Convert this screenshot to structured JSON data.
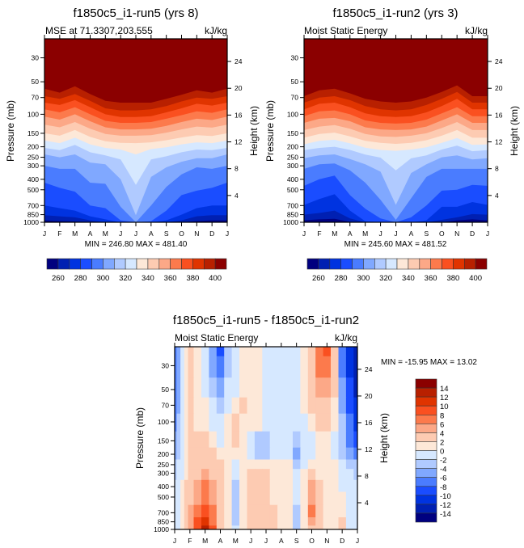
{
  "chart_data": [
    {
      "type": "heatmap",
      "id": "run5",
      "title": "f1850c5_i1-run5 (yrs 8)",
      "left_string": "MSE at 71.3307,203.555",
      "right_string": "kJ/kg",
      "ylabel": "Pressure (mb)",
      "ylabel_right": "Height (km)",
      "x_ticks": [
        "J",
        "F",
        "M",
        "A",
        "M",
        "J",
        "J",
        "A",
        "S",
        "O",
        "N",
        "D",
        "J"
      ],
      "y_ticks": [
        30,
        50,
        70,
        100,
        150,
        200,
        250,
        300,
        400,
        500,
        700,
        850,
        1000
      ],
      "y_ticks_right": [
        24,
        20,
        16,
        12,
        8,
        4
      ],
      "ylim": [
        1000,
        20
      ],
      "minmax_text": "MIN = 246.80 MAX = 481.40",
      "levels": [
        260,
        270,
        280,
        290,
        300,
        310,
        320,
        330,
        340,
        350,
        360,
        370,
        380,
        390,
        400
      ],
      "colorbar_labels": [
        "260",
        "280",
        "300",
        "320",
        "340",
        "360",
        "380",
        "400"
      ],
      "contour_pressure_by_month": {
        "note": "pressure (mb) of each contour boundary by month J..J (13 pts), from top level (400) downward",
        "400": [
          58,
          63,
          55,
          65,
          75,
          78,
          78,
          78,
          72,
          66,
          60,
          63,
          58
        ],
        "390": [
          68,
          72,
          65,
          75,
          88,
          92,
          92,
          90,
          84,
          76,
          70,
          72,
          68
        ],
        "380": [
          78,
          82,
          74,
          86,
          100,
          106,
          106,
          104,
          96,
          88,
          80,
          83,
          78
        ],
        "370": [
          90,
          96,
          86,
          100,
          115,
          120,
          120,
          118,
          110,
          102,
          94,
          97,
          90
        ],
        "360": [
          105,
          112,
          100,
          116,
          132,
          138,
          138,
          136,
          128,
          118,
          110,
          113,
          105
        ],
        "350": [
          125,
          132,
          118,
          136,
          152,
          158,
          158,
          156,
          148,
          138,
          130,
          133,
          125
        ],
        "340": [
          150,
          158,
          140,
          162,
          178,
          184,
          185,
          182,
          174,
          164,
          156,
          159,
          150
        ],
        "330": [
          175,
          185,
          165,
          190,
          205,
          212,
          235,
          210,
          202,
          190,
          182,
          185,
          175
        ],
        "320": [
          205,
          215,
          192,
          225,
          240,
          262,
          450,
          262,
          245,
          225,
          212,
          215,
          205
        ],
        "310": [
          235,
          250,
          235,
          280,
          290,
          400,
          860,
          380,
          310,
          275,
          255,
          255,
          235
        ],
        "300": [
          300,
          320,
          320,
          430,
          440,
          720,
          1000,
          700,
          470,
          360,
          310,
          320,
          300
        ],
        "290": [
          430,
          480,
          520,
          700,
          740,
          960,
          1000,
          980,
          780,
          560,
          510,
          480,
          430
        ],
        "280": [
          700,
          740,
          780,
          880,
          940,
          1000,
          1000,
          1000,
          960,
          850,
          740,
          700,
          700
        ],
        "270": [
          860,
          880,
          900,
          960,
          1000,
          1000,
          1000,
          1000,
          1000,
          960,
          880,
          860,
          860
        ],
        "260": [
          960,
          975,
          985,
          1000,
          1000,
          1000,
          1000,
          1000,
          1000,
          1000,
          975,
          960,
          960
        ]
      }
    },
    {
      "type": "heatmap",
      "id": "run2",
      "title": "f1850c5_i1-run2 (yrs 3)",
      "left_string": "Moist Static Energy",
      "right_string": "kJ/kg",
      "ylabel": "Pressure (mb)",
      "ylabel_right": "Height (km)",
      "x_ticks": [
        "J",
        "F",
        "M",
        "A",
        "M",
        "J",
        "J",
        "A",
        "S",
        "O",
        "N",
        "D",
        "J"
      ],
      "y_ticks": [
        30,
        50,
        70,
        100,
        150,
        200,
        250,
        300,
        400,
        500,
        700,
        850,
        1000
      ],
      "y_ticks_right": [
        24,
        20,
        16,
        12,
        8,
        4
      ],
      "ylim": [
        1000,
        20
      ],
      "minmax_text": "MIN = 245.60 MAX = 481.52",
      "levels": [
        260,
        270,
        280,
        290,
        300,
        310,
        320,
        330,
        340,
        350,
        360,
        370,
        380,
        390,
        400
      ],
      "colorbar_labels": [
        "260",
        "280",
        "300",
        "320",
        "340",
        "360",
        "380",
        "400"
      ],
      "contour_pressure_by_month": {
        "400": [
          68,
          60,
          58,
          64,
          72,
          76,
          78,
          76,
          70,
          62,
          54,
          68,
          68
        ],
        "390": [
          78,
          70,
          68,
          74,
          84,
          90,
          92,
          90,
          82,
          72,
          62,
          78,
          78
        ],
        "380": [
          90,
          80,
          78,
          86,
          98,
          104,
          106,
          104,
          96,
          84,
          72,
          90,
          90
        ],
        "370": [
          104,
          94,
          92,
          100,
          114,
          120,
          122,
          120,
          112,
          98,
          86,
          104,
          104
        ],
        "360": [
          120,
          110,
          108,
          116,
          132,
          138,
          140,
          138,
          130,
          114,
          100,
          120,
          120
        ],
        "350": [
          140,
          130,
          126,
          136,
          152,
          160,
          162,
          158,
          150,
          134,
          118,
          140,
          140
        ],
        "340": [
          165,
          152,
          148,
          160,
          176,
          184,
          188,
          184,
          174,
          158,
          140,
          165,
          165
        ],
        "330": [
          190,
          176,
          172,
          186,
          204,
          214,
          218,
          212,
          202,
          184,
          166,
          192,
          190
        ],
        "320": [
          215,
          205,
          200,
          214,
          236,
          252,
          330,
          256,
          240,
          212,
          195,
          220,
          215
        ],
        "310": [
          255,
          240,
          235,
          260,
          290,
          340,
          690,
          350,
          290,
          250,
          240,
          262,
          255
        ],
        "300": [
          320,
          290,
          285,
          330,
          430,
          620,
          950,
          600,
          380,
          320,
          320,
          320,
          320
        ],
        "290": [
          460,
          400,
          370,
          560,
          750,
          920,
          1000,
          900,
          700,
          510,
          500,
          450,
          460
        ],
        "280": [
          690,
          610,
          550,
          780,
          980,
          1000,
          1000,
          1000,
          960,
          720,
          720,
          650,
          690
        ],
        "270": [
          850,
          820,
          780,
          920,
          1000,
          1000,
          1000,
          1000,
          1000,
          950,
          900,
          840,
          850
        ],
        "260": [
          960,
          940,
          930,
          990,
          1000,
          1000,
          1000,
          1000,
          1000,
          1000,
          960,
          940,
          960
        ]
      }
    },
    {
      "type": "heatmap",
      "id": "diff",
      "title": "f1850c5_i1-run5 - f1850c5_i1-run2",
      "left_string": "Moist Static Energy",
      "right_string": "kJ/kg",
      "ylabel": "Pressure (mb)",
      "ylabel_right": "Height (km)",
      "x_ticks": [
        "J",
        "F",
        "M",
        "A",
        "M",
        "J",
        "J",
        "A",
        "S",
        "O",
        "N",
        "D",
        "J"
      ],
      "y_ticks": [
        30,
        50,
        70,
        100,
        150,
        200,
        250,
        300,
        400,
        500,
        700,
        850,
        1000
      ],
      "y_ticks_right": [
        24,
        20,
        16,
        12,
        8,
        4
      ],
      "ylim": [
        1000,
        20
      ],
      "minmax_text": "MIN = -15.95 MAX =  13.02",
      "levels": [
        -14,
        -12,
        -10,
        -8,
        -6,
        -4,
        -2,
        0,
        2,
        4,
        6,
        8,
        10,
        12,
        14
      ],
      "colorbar_labels": [
        "14",
        "12",
        "10",
        "8",
        "6",
        "4",
        "2",
        "0",
        "-2",
        "-4",
        "-6",
        "-8",
        "-10",
        "-12",
        "-14"
      ],
      "grid_x_months": [
        0,
        0.25,
        0.5,
        0.75,
        1,
        1.5,
        2,
        2.5,
        3,
        3.5,
        4,
        4.5,
        5,
        5.5,
        6,
        6.5,
        7,
        7.5,
        8,
        8.5,
        9,
        9.5,
        10,
        10.5,
        11,
        11.5,
        12
      ],
      "grid_pressure": [
        20,
        30,
        50,
        70,
        100,
        150,
        200,
        250,
        300,
        400,
        500,
        700,
        850,
        1000
      ],
      "values": [
        [
          -8,
          -5,
          -1,
          1,
          3,
          1,
          -2,
          -5,
          -9,
          -3,
          -1,
          1,
          1,
          1,
          -1,
          -1,
          -1,
          -1,
          -1,
          1,
          3,
          7,
          9,
          3,
          -7,
          -11,
          -14
        ],
        [
          -8,
          -5,
          -1,
          1,
          3,
          1,
          -2,
          -5,
          -8,
          -3,
          -1,
          1,
          1,
          1,
          -1,
          -1,
          -1,
          -1,
          -1,
          1,
          3,
          6,
          7,
          3,
          -7,
          -11,
          -14
        ],
        [
          -8,
          -5,
          -1,
          1,
          3,
          1,
          -1,
          -4,
          -5,
          -2,
          -1,
          1,
          1,
          1,
          -1,
          -1,
          -1,
          -1,
          -1,
          1,
          2,
          4,
          5,
          3,
          -6,
          -10,
          -13
        ],
        [
          -7,
          -5,
          -1,
          1,
          3,
          1,
          0,
          -2,
          -3,
          -1,
          1,
          2,
          1,
          1,
          -1,
          -1,
          -1,
          -1,
          -1,
          1,
          2,
          3,
          3,
          1,
          -5,
          -9,
          -12
        ],
        [
          -7,
          -4,
          -1,
          1,
          2,
          1,
          1,
          -1,
          -1,
          1,
          2,
          1,
          1,
          1,
          -1,
          -1,
          -1,
          -1,
          -1,
          -1,
          1,
          2,
          2,
          1,
          -4,
          -8,
          -11
        ],
        [
          -6,
          -4,
          -1,
          1,
          2,
          2,
          2,
          1,
          -1,
          1,
          2,
          1,
          -1,
          -3,
          -3,
          -1,
          -1,
          -1,
          -3,
          -1,
          -1,
          1,
          1,
          -1,
          -4,
          -7,
          -9
        ],
        [
          -5,
          -3,
          -1,
          1,
          2,
          3,
          3,
          2,
          1,
          1,
          1,
          1,
          -1,
          -3,
          -3,
          -1,
          -1,
          -1,
          -5,
          -1,
          -1,
          1,
          1,
          -1,
          -3,
          -6,
          -7
        ],
        [
          -4,
          -2,
          -1,
          1,
          2,
          3,
          3,
          3,
          2,
          1,
          -1,
          1,
          1,
          1,
          1,
          1,
          1,
          1,
          -3,
          -1,
          1,
          1,
          1,
          1,
          -1,
          -3,
          -4
        ],
        [
          -3,
          -2,
          -1,
          1,
          2,
          3,
          4,
          3,
          2,
          1,
          -2,
          1,
          2,
          3,
          2,
          1,
          1,
          1,
          -2,
          1,
          2,
          1,
          1,
          1,
          -1,
          -2,
          -3
        ],
        [
          -2,
          -1,
          1,
          2,
          3,
          5,
          6,
          4,
          2,
          1,
          -3,
          1,
          2,
          3,
          2,
          1,
          1,
          1,
          -2,
          1,
          4,
          2,
          1,
          1,
          -1,
          -1,
          -2
        ],
        [
          -2,
          -1,
          1,
          2,
          3,
          5,
          7,
          5,
          2,
          1,
          -4,
          1,
          2,
          3,
          2,
          1,
          1,
          1,
          -2,
          1,
          5,
          2,
          1,
          1,
          1,
          -1,
          -2
        ],
        [
          -2,
          -1,
          1,
          2,
          4,
          7,
          9,
          6,
          3,
          1,
          -4,
          1,
          2,
          3,
          3,
          2,
          1,
          1,
          -3,
          1,
          6,
          2,
          1,
          1,
          1,
          -1,
          -2
        ],
        [
          -2,
          -1,
          1,
          2,
          4,
          8,
          11,
          7,
          3,
          1,
          -3,
          1,
          2,
          3,
          3,
          2,
          1,
          1,
          -3,
          1,
          5,
          2,
          1,
          1,
          2,
          -1,
          -2
        ],
        [
          -2,
          -1,
          1,
          2,
          4,
          9,
          13,
          8,
          3,
          1,
          -2,
          1,
          2,
          3,
          3,
          2,
          1,
          1,
          -3,
          1,
          3,
          2,
          1,
          1,
          3,
          -1,
          -2
        ]
      ]
    }
  ],
  "colors": {
    "fill_palette": [
      "#00007f",
      "#0020b2",
      "#0033e0",
      "#1a4dff",
      "#4a7cff",
      "#80a8ff",
      "#b0caff",
      "#d6e8ff",
      "#fde8d8",
      "#fdcbb2",
      "#fca887",
      "#fc7a4c",
      "#fa5020",
      "#e03400",
      "#b82000",
      "#8b0000"
    ]
  },
  "labels": {
    "mb_label": "Pressure (mb)",
    "km_label": "Height (km)"
  }
}
